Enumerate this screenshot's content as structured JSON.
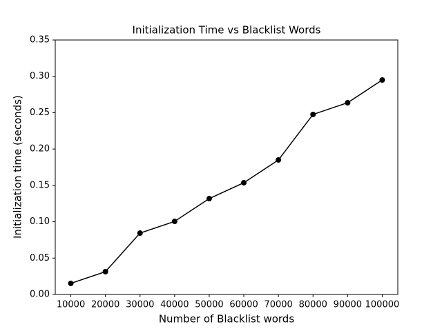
{
  "chart_data": {
    "type": "line",
    "title": "Initialization Time vs Blacklist Words",
    "x_label": "Number of Blacklist words",
    "y_label": "Initialization time (seconds)",
    "x": [
      10000,
      20000,
      30000,
      40000,
      50000,
      60000,
      70000,
      80000,
      90000,
      100000
    ],
    "series": [
      {
        "name": "Initialization time",
        "color": "#000000",
        "values": [
          0.0152,
          0.0313,
          0.0844,
          0.1005,
          0.1318,
          0.1537,
          0.185,
          0.2476,
          0.2637,
          0.295
        ]
      }
    ],
    "xlim": [
      5500,
      104500
    ],
    "xticks": [
      10000,
      20000,
      30000,
      40000,
      50000,
      60000,
      70000,
      80000,
      90000,
      100000
    ],
    "ylim": [
      0,
      0.35
    ],
    "yticks": [
      {
        "value": 0,
        "label": "0.00"
      },
      0.05,
      {
        "value": 0.1,
        "label": "0.10"
      },
      0.15,
      {
        "value": 0.2,
        "label": "0.20"
      },
      0.25,
      {
        "value": 0.3,
        "label": "0.30"
      },
      0.35
    ],
    "grid": false
  }
}
